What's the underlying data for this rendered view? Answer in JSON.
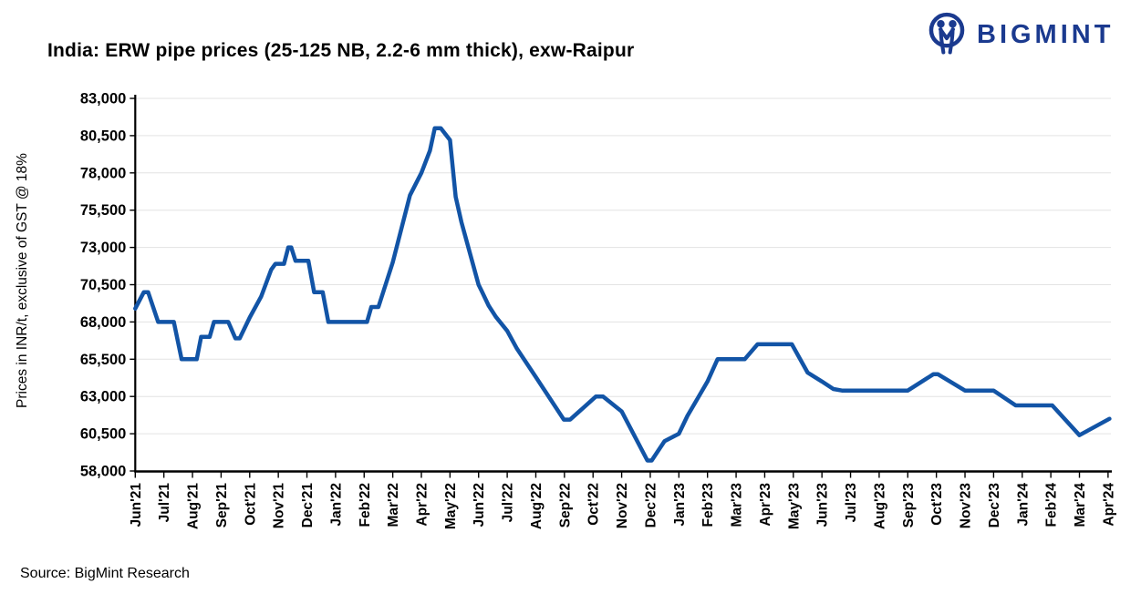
{
  "header": {
    "title": "India: ERW pipe prices (25-125 NB, 2.2-6 mm thick), exw-Raipur",
    "logo_text": "BIGMINT"
  },
  "footer": {
    "source": "Source: BigMint Research"
  },
  "colors": {
    "line": "#1254A6",
    "logo_navy": "#1B3A8F",
    "grid": "#E3E3E3",
    "axis": "#000000",
    "background": "#FFFFFF"
  },
  "chart_data": {
    "type": "line",
    "title": "India: ERW pipe prices (25-125 NB, 2.2-6 mm thick), exw-Raipur",
    "xlabel": "",
    "ylabel": "Prices in INR/t, exclusive of GST @ 18%",
    "ylim": [
      58000,
      83000
    ],
    "ytick_step": 2500,
    "yticks": [
      58000,
      60500,
      63000,
      65500,
      68000,
      70500,
      73000,
      75500,
      78000,
      80500,
      83000
    ],
    "grid": "horizontal",
    "legend": "none",
    "line_color": "#1254A6",
    "categories": [
      "Jun'21",
      "Jul'21",
      "Aug'21",
      "Sep'21",
      "Oct'21",
      "Nov'21",
      "Dec'21",
      "Jan'22",
      "Feb'22",
      "Mar'22",
      "Apr'22",
      "May'22",
      "Jun'22",
      "Jul'22",
      "Aug'22",
      "Sep'22",
      "Oct'22",
      "Nov'22",
      "Dec'22",
      "Jan'23",
      "Feb'23",
      "Mar'23",
      "Apr'23",
      "May'23",
      "Jun'23",
      "Jul'23",
      "Aug'23",
      "Sep'23",
      "Oct'23",
      "Nov'23",
      "Dec'23",
      "Jan'24",
      "Feb'24",
      "Mar'24",
      "Apr'24"
    ],
    "series": [
      {
        "name": "ERW pipe price, exw-Raipur (INR/t)",
        "values": [
          68900,
          68000,
          65500,
          68000,
          68300,
          71900,
          72000,
          68000,
          68000,
          72000,
          78000,
          80200,
          70500,
          67400,
          64300,
          61500,
          63000,
          62000,
          58700,
          60500,
          64000,
          65500,
          66500,
          66500,
          64000,
          63400,
          63400,
          63400,
          64500,
          63400,
          63400,
          62400,
          62400,
          60400,
          61500
        ]
      }
    ],
    "notable_points": {
      "peak": {
        "x": "late Apr'22",
        "value": 81000
      },
      "secondary_peak": {
        "x": "mid Nov'21",
        "value": 73000
      },
      "trough": {
        "x": "Dec'22",
        "value": 58700
      }
    },
    "shape_points": [
      [
        0,
        68900
      ],
      [
        0.3,
        70000
      ],
      [
        0.45,
        70000
      ],
      [
        0.8,
        68000
      ],
      [
        1.35,
        68000
      ],
      [
        1.62,
        65500
      ],
      [
        2.15,
        65500
      ],
      [
        2.3,
        67000
      ],
      [
        2.6,
        67000
      ],
      [
        2.75,
        68000
      ],
      [
        3.25,
        68000
      ],
      [
        3.5,
        66900
      ],
      [
        3.65,
        66900
      ],
      [
        4.0,
        68300
      ],
      [
        4.4,
        69700
      ],
      [
        4.75,
        71500
      ],
      [
        4.9,
        71900
      ],
      [
        5.2,
        71900
      ],
      [
        5.35,
        73000
      ],
      [
        5.45,
        73000
      ],
      [
        5.6,
        72100
      ],
      [
        6.05,
        72100
      ],
      [
        6.25,
        70000
      ],
      [
        6.55,
        70000
      ],
      [
        6.75,
        68000
      ],
      [
        8.1,
        68000
      ],
      [
        8.25,
        69000
      ],
      [
        8.5,
        69000
      ],
      [
        9.0,
        72000
      ],
      [
        9.6,
        76500
      ],
      [
        10.0,
        78000
      ],
      [
        10.3,
        79500
      ],
      [
        10.47,
        81000
      ],
      [
        10.68,
        81000
      ],
      [
        11.0,
        80200
      ],
      [
        11.2,
        76400
      ],
      [
        11.4,
        74700
      ],
      [
        12.0,
        70500
      ],
      [
        12.1,
        70100
      ],
      [
        12.35,
        69100
      ],
      [
        12.6,
        68350
      ],
      [
        13.0,
        67400
      ],
      [
        13.34,
        66200
      ],
      [
        14.0,
        64300
      ],
      [
        14.98,
        61450
      ],
      [
        15.2,
        61450
      ],
      [
        16.1,
        63000
      ],
      [
        16.35,
        63000
      ],
      [
        17.0,
        62000
      ],
      [
        17.9,
        58700
      ],
      [
        18.05,
        58700
      ],
      [
        18.5,
        60000
      ],
      [
        19.0,
        60500
      ],
      [
        19.3,
        61700
      ],
      [
        20.0,
        64000
      ],
      [
        20.35,
        65500
      ],
      [
        21.3,
        65500
      ],
      [
        21.75,
        66500
      ],
      [
        22.95,
        66500
      ],
      [
        23.5,
        64600
      ],
      [
        24.0,
        64000
      ],
      [
        24.4,
        63500
      ],
      [
        24.7,
        63400
      ],
      [
        27.0,
        63400
      ],
      [
        27.9,
        64500
      ],
      [
        28.05,
        64500
      ],
      [
        29.0,
        63400
      ],
      [
        30.0,
        63400
      ],
      [
        30.77,
        62400
      ],
      [
        32.05,
        62400
      ],
      [
        33.0,
        60400
      ],
      [
        34.05,
        61500
      ]
    ]
  }
}
